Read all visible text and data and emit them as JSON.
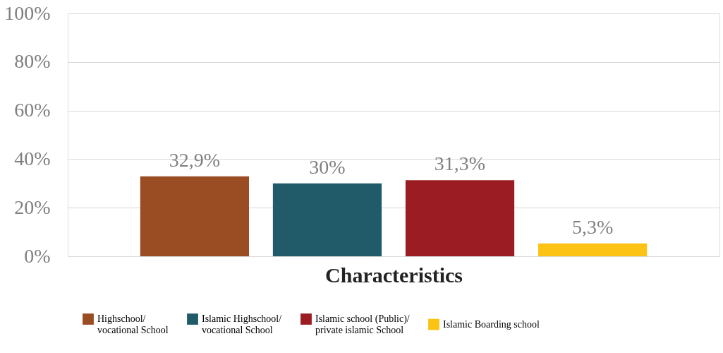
{
  "chart_data": {
    "type": "bar",
    "xlabel": "Characteristics",
    "categories": [
      null
    ],
    "series": [
      {
        "name": "Highschool/ vocational School",
        "color": "#9a4c22",
        "values": [
          32.9
        ],
        "value_labels": [
          "32,9%"
        ]
      },
      {
        "name": "Islamic Highschool/ vocational School",
        "color": "#215a69",
        "values": [
          30
        ],
        "value_labels": [
          "30%"
        ]
      },
      {
        "name": "Islamic school (Public)/ private islamic School",
        "color": "#9b1c22",
        "values": [
          31.3
        ],
        "value_labels": [
          "31,3%"
        ]
      },
      {
        "name": "Islamic Boarding school",
        "color": "#fcc314",
        "values": [
          5.3
        ],
        "value_labels": [
          "5,3%"
        ]
      }
    ],
    "ylim": [
      0,
      100
    ],
    "yticks": [
      {
        "value": 0,
        "label": "0%"
      },
      {
        "value": 20,
        "label": "20%"
      },
      {
        "value": 40,
        "label": "40%"
      },
      {
        "value": 60,
        "label": "60%"
      },
      {
        "value": 80,
        "label": "80%"
      },
      {
        "value": 100,
        "label": "100%"
      }
    ],
    "grid": "y",
    "legend": "bottom"
  }
}
